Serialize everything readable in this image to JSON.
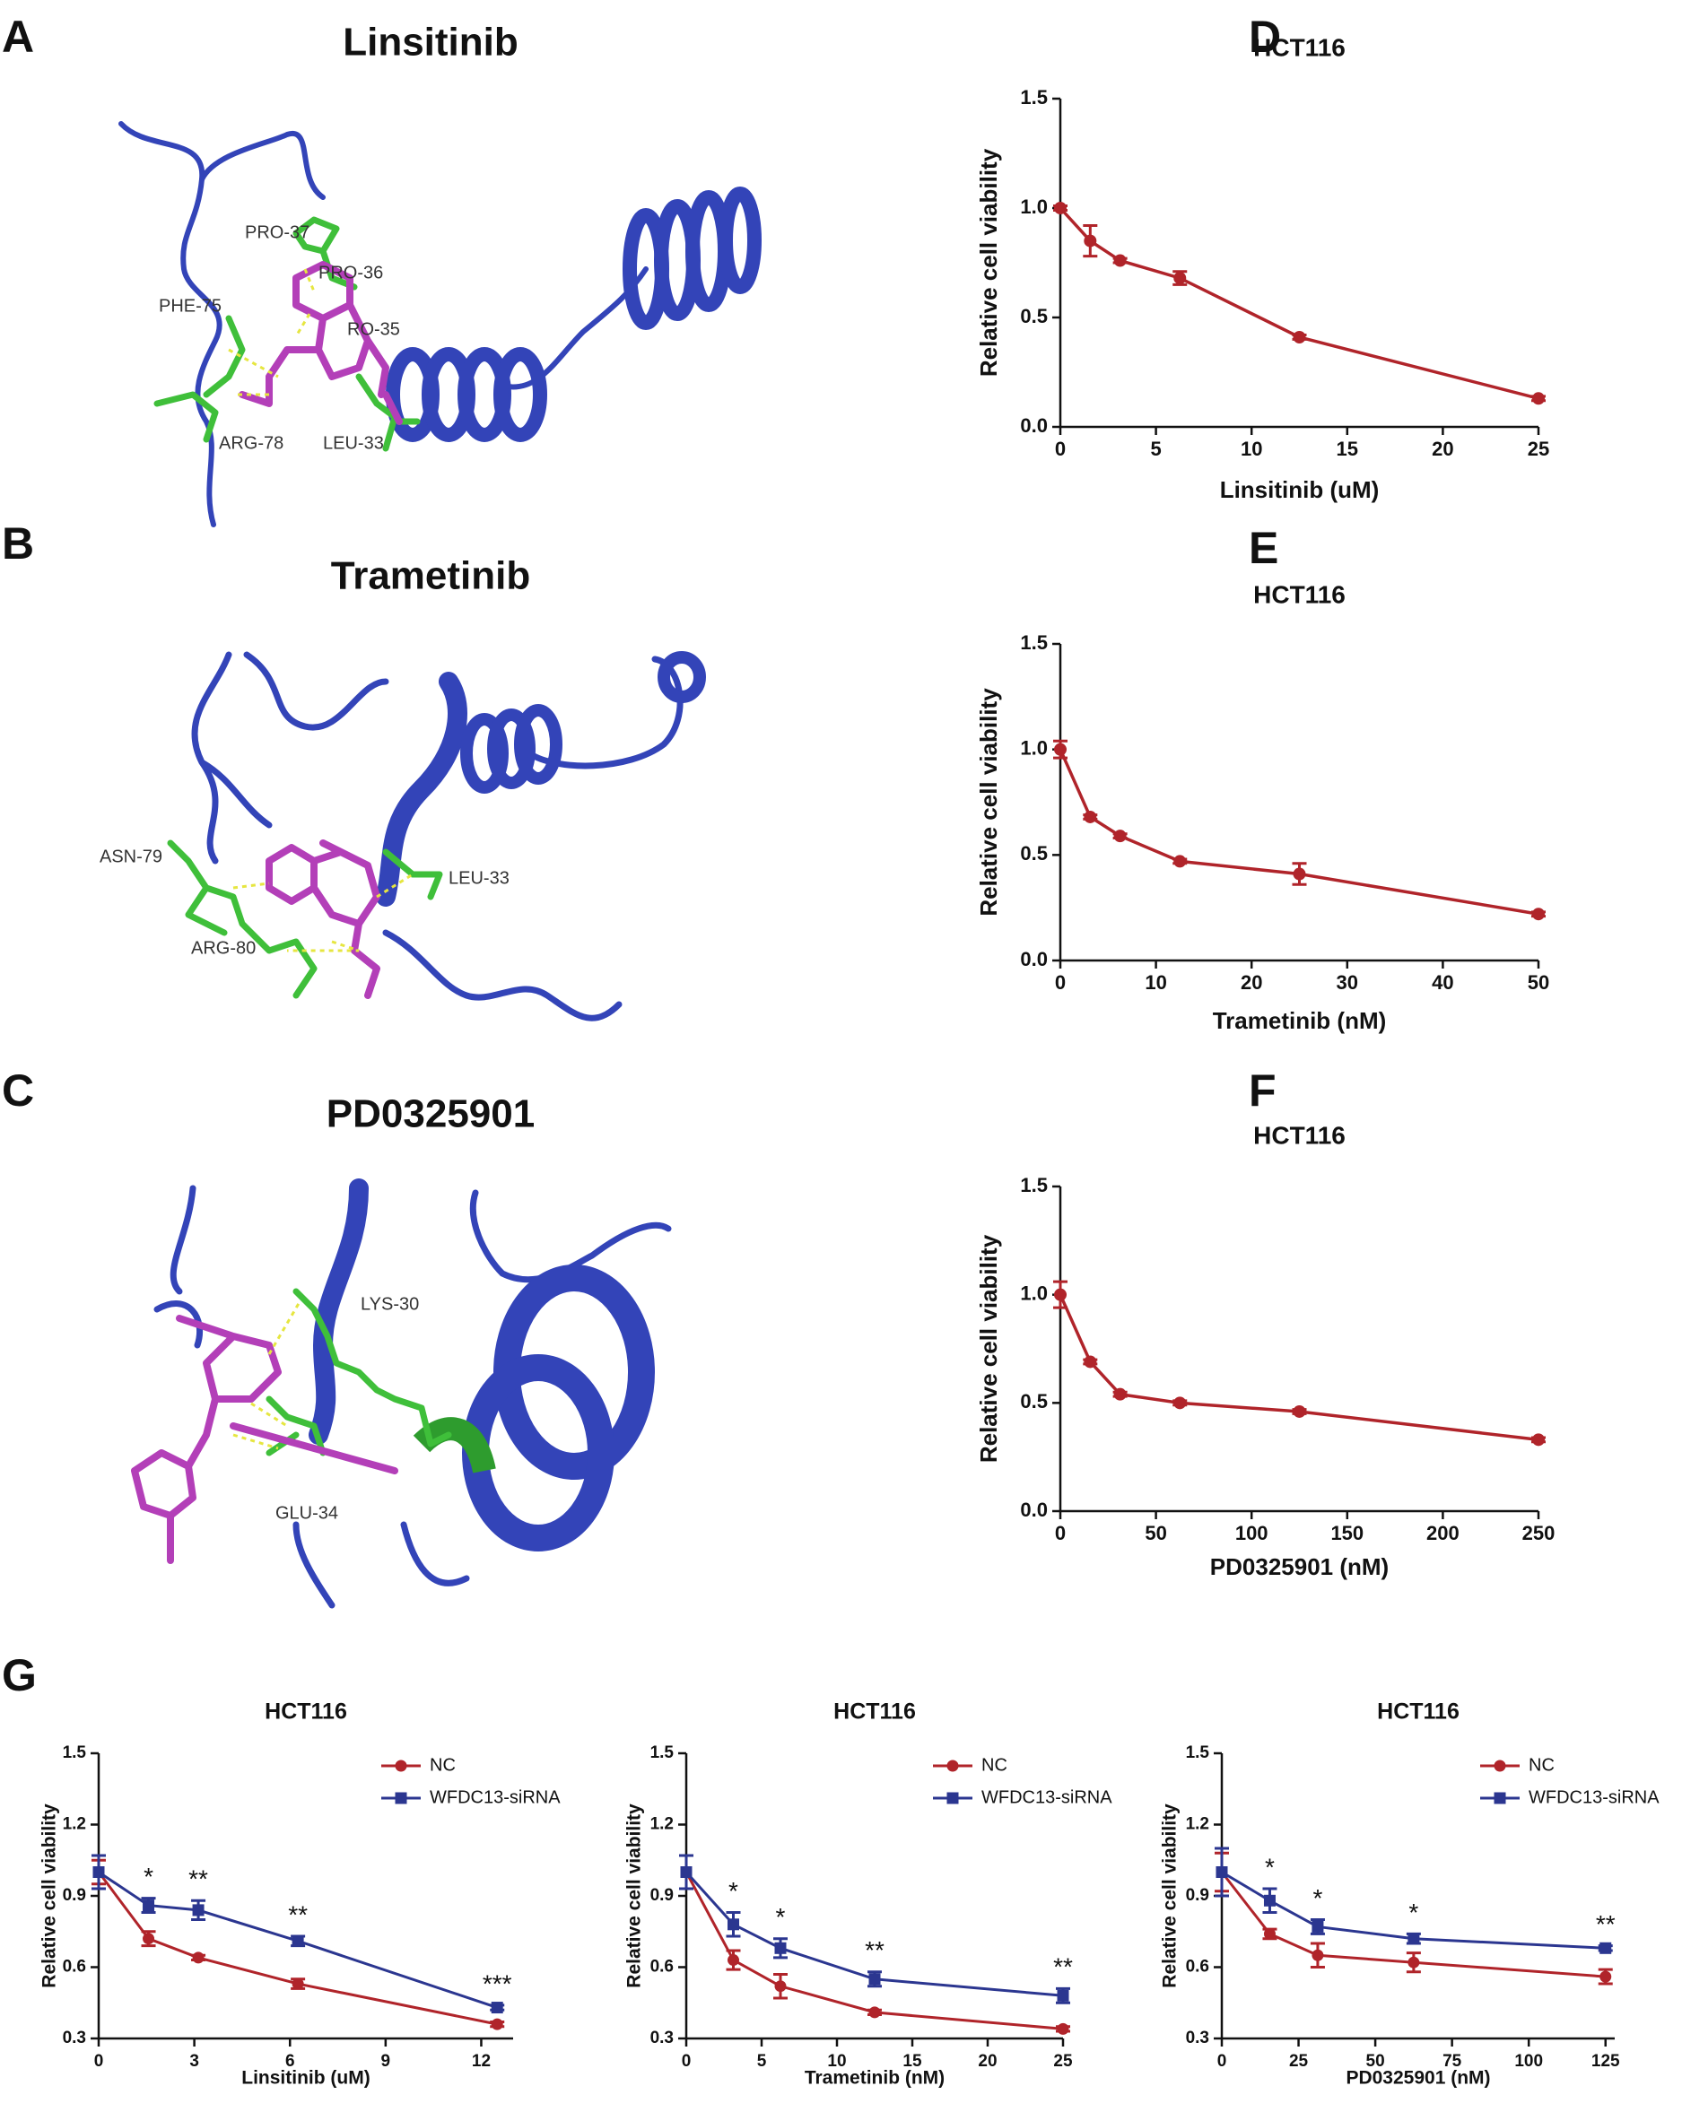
{
  "structures": [
    {
      "panel": "A",
      "title": "Linsitinib",
      "residues": [
        "PRO-37",
        "PRO-36",
        "PHE-75",
        "RO-35",
        "ARG-78",
        "LEU-33"
      ]
    },
    {
      "panel": "B",
      "title": "Trametinib",
      "residues": [
        "ASN-79",
        "LEU-33",
        "ARG-80"
      ]
    },
    {
      "panel": "C",
      "title": "PD0325901",
      "residues": [
        "LYS-30",
        "GLU-34"
      ]
    }
  ],
  "chart_data": [
    {
      "type": "line",
      "panel": "D",
      "title": "HCT116",
      "x_label": "Linsitinib (uM)",
      "y_label": "Relative cell viability",
      "x": [
        0,
        1.5625,
        3.125,
        6.25,
        12.5,
        25
      ],
      "values": [
        1.0,
        0.85,
        0.76,
        0.68,
        0.41,
        0.13
      ],
      "errors": [
        0.01,
        0.07,
        0.01,
        0.03,
        0.01,
        0.01
      ],
      "color": "#b0242a",
      "marker": "circle",
      "xlim": [
        0,
        25
      ],
      "xticks": [
        0,
        5,
        10,
        15,
        20,
        25
      ],
      "ylim": [
        0,
        1.5
      ],
      "yticks": [
        {
          "value": 0,
          "label": "0.0"
        },
        0.5,
        {
          "value": 1,
          "label": "1.0"
        },
        1.5
      ]
    },
    {
      "type": "line",
      "panel": "E",
      "title": "HCT116",
      "x_label": "Trametinib (nM)",
      "y_label": "Relative cell viability",
      "x": [
        0,
        3.125,
        6.25,
        12.5,
        25,
        50
      ],
      "values": [
        1.0,
        0.68,
        0.59,
        0.47,
        0.41,
        0.22
      ],
      "errors": [
        0.04,
        0.01,
        0.01,
        0.01,
        0.05,
        0.01
      ],
      "color": "#b0242a",
      "marker": "circle",
      "xlim": [
        0,
        50
      ],
      "xticks": [
        0,
        10,
        20,
        30,
        40,
        50
      ],
      "ylim": [
        0,
        1.5
      ],
      "yticks": [
        {
          "value": 0,
          "label": "0.0"
        },
        0.5,
        {
          "value": 1,
          "label": "1.0"
        },
        1.5
      ]
    },
    {
      "type": "line",
      "panel": "F",
      "title": "HCT116",
      "x_label": "PD0325901 (nM)",
      "y_label": "Relative cell viability",
      "x": [
        0,
        15.625,
        31.25,
        62.5,
        125,
        250
      ],
      "values": [
        1.0,
        0.69,
        0.54,
        0.5,
        0.46,
        0.33
      ],
      "errors": [
        0.06,
        0.01,
        0.01,
        0.01,
        0.01,
        0.01
      ],
      "color": "#b0242a",
      "marker": "circle",
      "xlim": [
        0,
        250
      ],
      "xticks": [
        0,
        50,
        100,
        150,
        200,
        250
      ],
      "ylim": [
        0,
        1.5
      ],
      "yticks": [
        {
          "value": 0,
          "label": "0.0"
        },
        0.5,
        {
          "value": 1,
          "label": "1.0"
        },
        1.5
      ]
    },
    {
      "type": "line",
      "panel": "G",
      "title": "HCT116",
      "x_label": "Linsitinib (uM)",
      "y_label": "Relative cell viability",
      "x": [
        0,
        1.5625,
        3.125,
        6.25,
        12.5
      ],
      "series": [
        {
          "name": "NC",
          "color": "#b0242a",
          "marker": "circle",
          "values": [
            1.0,
            0.72,
            0.64,
            0.53,
            0.36
          ],
          "errors": [
            0.05,
            0.03,
            0.01,
            0.02,
            0.01
          ]
        },
        {
          "name": "WFDC13-siRNA",
          "color": "#2b3690",
          "marker": "square",
          "values": [
            1.0,
            0.86,
            0.84,
            0.71,
            0.43
          ],
          "errors": [
            0.07,
            0.03,
            0.04,
            0.02,
            0.01
          ]
        }
      ],
      "significance": [
        null,
        "*",
        "**",
        "**",
        "***"
      ],
      "legend": "top-right",
      "xlim": [
        0,
        13
      ],
      "xticks": [
        0,
        3,
        6,
        9,
        12
      ],
      "ylim": [
        0.3,
        1.5
      ],
      "yticks": [
        0.3,
        0.6,
        0.9,
        1.2,
        1.5
      ]
    },
    {
      "type": "line",
      "title": "HCT116",
      "x_label": "Trametinib (nM)",
      "y_label": "Relative cell viability",
      "x": [
        0,
        3.125,
        6.25,
        12.5,
        25
      ],
      "series": [
        {
          "name": "NC",
          "color": "#b0242a",
          "marker": "circle",
          "values": [
            1.0,
            0.63,
            0.52,
            0.41,
            0.34
          ],
          "errors": [
            0.07,
            0.04,
            0.05,
            0.01,
            0.01
          ]
        },
        {
          "name": "WFDC13-siRNA",
          "color": "#2b3690",
          "marker": "square",
          "values": [
            1.0,
            0.78,
            0.68,
            0.55,
            0.48
          ],
          "errors": [
            0.07,
            0.05,
            0.04,
            0.03,
            0.03
          ]
        }
      ],
      "significance": [
        null,
        "*",
        "*",
        "**",
        "**"
      ],
      "legend": "top-right",
      "xlim": [
        0,
        25
      ],
      "xticks": [
        0,
        5,
        10,
        15,
        20,
        25
      ],
      "ylim": [
        0.3,
        1.5
      ],
      "yticks": [
        0.3,
        0.6,
        0.9,
        1.2,
        1.5
      ]
    },
    {
      "type": "line",
      "title": "HCT116",
      "x_label": "PD0325901 (nM)",
      "y_label": "Relative cell viability",
      "x": [
        0,
        15.625,
        31.25,
        62.5,
        125
      ],
      "series": [
        {
          "name": "NC",
          "color": "#b0242a",
          "marker": "circle",
          "values": [
            1.0,
            0.74,
            0.65,
            0.62,
            0.56
          ],
          "errors": [
            0.08,
            0.02,
            0.05,
            0.04,
            0.03
          ]
        },
        {
          "name": "WFDC13-siRNA",
          "color": "#2b3690",
          "marker": "square",
          "values": [
            1.0,
            0.88,
            0.77,
            0.72,
            0.68
          ],
          "errors": [
            0.1,
            0.05,
            0.03,
            0.02,
            0.01
          ]
        }
      ],
      "significance": [
        null,
        "*",
        "*",
        "*",
        "**"
      ],
      "legend": "top-right",
      "xlim": [
        0,
        128
      ],
      "xticks": [
        0,
        25,
        50,
        75,
        100,
        125
      ],
      "ylim": [
        0.3,
        1.5
      ],
      "yticks": [
        0.3,
        0.6,
        0.9,
        1.2,
        1.5
      ]
    }
  ]
}
